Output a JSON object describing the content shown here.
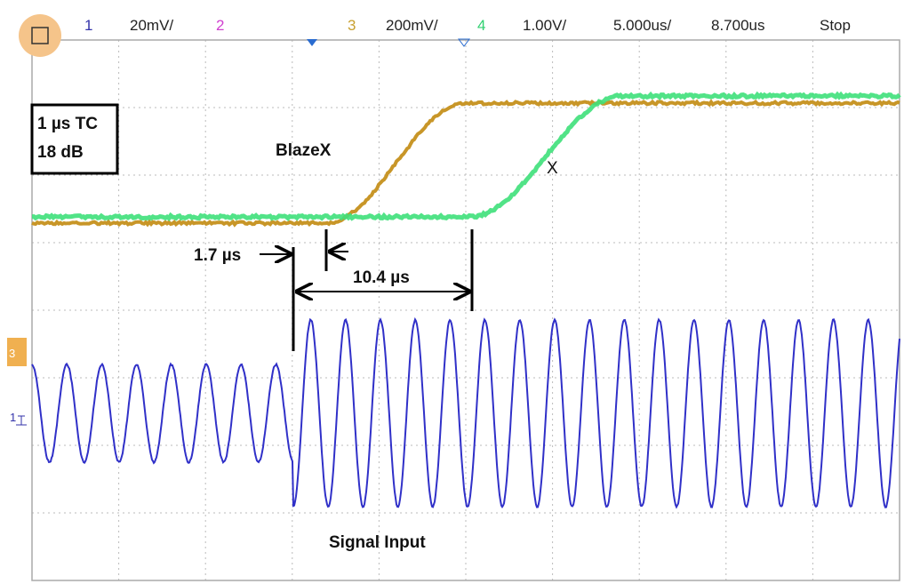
{
  "header": {
    "channels": [
      {
        "number": "1",
        "scale": "20mV/"
      },
      {
        "number": "2"
      },
      {
        "number": "3",
        "scale": "200mV/"
      },
      {
        "number": "4",
        "scale": "1.00V/"
      }
    ],
    "timebase": "5.000us/",
    "delay": "8.700us",
    "status": "Stop"
  },
  "markers": {
    "ch3": "3",
    "ch1": "1"
  },
  "annotations": {
    "box": [
      "1 µs TC",
      "18 dB"
    ],
    "blazex": "BlazeX",
    "x": "X",
    "delay_short": "1.7 µs",
    "delay_long": "10.4 µs",
    "signal": "Signal Input"
  }
}
